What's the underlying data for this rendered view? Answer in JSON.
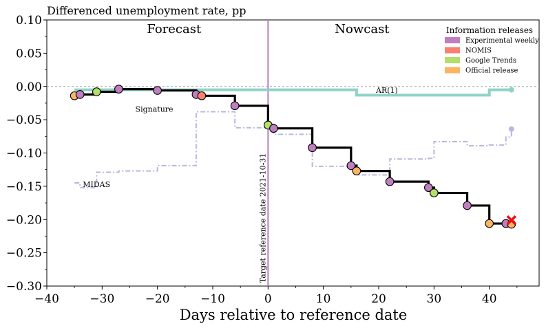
{
  "chart_data": {
    "type": "line",
    "title": "Differenced unemployment rate, pp",
    "xlabel": "Days relative to reference date",
    "ylabel": "",
    "xlim": [
      -40,
      49
    ],
    "ylim": [
      -0.3,
      0.1
    ],
    "xticks": [
      -40,
      -30,
      -20,
      -10,
      0,
      10,
      20,
      30,
      40
    ],
    "xtick_labels": [
      "−40",
      "−30",
      "−20",
      "−10",
      "0",
      "10",
      "20",
      "30",
      "40"
    ],
    "yticks": [
      -0.3,
      -0.25,
      -0.2,
      -0.15,
      -0.1,
      -0.05,
      0.0,
      0.05,
      0.1
    ],
    "ytick_labels": [
      "−0.30",
      "−0.25",
      "−0.20",
      "−0.15",
      "−0.10",
      "−0.05",
      "0.00",
      "0.05",
      "0.10"
    ],
    "zero_line": 0.0,
    "reference_line": {
      "x": 0,
      "label": "Target reference date 2021-10-31",
      "color": "#b87cc0"
    },
    "regions": [
      {
        "label": "Forecast",
        "x": -17
      },
      {
        "label": "Nowcast",
        "x": 17
      }
    ],
    "series": [
      {
        "name": "Signature",
        "style": "step",
        "color": "#000000",
        "points": [
          {
            "x": -35,
            "y": -0.014
          },
          {
            "x": -34,
            "y": -0.012
          },
          {
            "x": -31,
            "y": -0.008
          },
          {
            "x": -27,
            "y": -0.004
          },
          {
            "x": -20,
            "y": -0.006
          },
          {
            "x": -13,
            "y": -0.012
          },
          {
            "x": -12,
            "y": -0.014
          },
          {
            "x": -6,
            "y": -0.029
          },
          {
            "x": 0,
            "y": -0.058
          },
          {
            "x": 1,
            "y": -0.063
          },
          {
            "x": 8,
            "y": -0.092
          },
          {
            "x": 15,
            "y": -0.119
          },
          {
            "x": 16,
            "y": -0.127
          },
          {
            "x": 22,
            "y": -0.143
          },
          {
            "x": 29,
            "y": -0.152
          },
          {
            "x": 30,
            "y": -0.16
          },
          {
            "x": 36,
            "y": -0.179
          },
          {
            "x": 40,
            "y": -0.206
          },
          {
            "x": 43,
            "y": -0.206
          },
          {
            "x": 44,
            "y": -0.207
          }
        ]
      },
      {
        "name": "AR(1)",
        "style": "step",
        "color": "#8dd3c7",
        "points": [
          {
            "x": -35,
            "y": -0.005
          },
          {
            "x": 16,
            "y": -0.013
          },
          {
            "x": 40,
            "y": -0.005
          },
          {
            "x": 44,
            "y": -0.005
          }
        ]
      },
      {
        "name": "MIDAS",
        "style": "step-dashdot",
        "color": "#bcb6dd",
        "points": [
          {
            "x": -35,
            "y": -0.145
          },
          {
            "x": -34,
            "y": -0.152
          },
          {
            "x": -31,
            "y": -0.15
          },
          {
            "x": -31,
            "y": -0.129
          },
          {
            "x": -27,
            "y": -0.127
          },
          {
            "x": -20,
            "y": -0.119
          },
          {
            "x": -13,
            "y": -0.038
          },
          {
            "x": -6,
            "y": -0.062
          },
          {
            "x": 0,
            "y": -0.06
          },
          {
            "x": 1,
            "y": -0.072
          },
          {
            "x": 8,
            "y": -0.12
          },
          {
            "x": 15,
            "y": -0.125
          },
          {
            "x": 16,
            "y": -0.133
          },
          {
            "x": 22,
            "y": -0.109
          },
          {
            "x": 29,
            "y": -0.108
          },
          {
            "x": 30,
            "y": -0.083
          },
          {
            "x": 36,
            "y": -0.089
          },
          {
            "x": 40,
            "y": -0.088
          },
          {
            "x": 43,
            "y": -0.076
          },
          {
            "x": 44,
            "y": -0.064
          }
        ]
      }
    ],
    "releases": [
      {
        "x": -35,
        "y": -0.014,
        "type": "Official release"
      },
      {
        "x": -34,
        "y": -0.012,
        "type": "Experimental weekly"
      },
      {
        "x": -31,
        "y": -0.008,
        "type": "Google Trends"
      },
      {
        "x": -27,
        "y": -0.004,
        "type": "Experimental weekly"
      },
      {
        "x": -20,
        "y": -0.006,
        "type": "Experimental weekly"
      },
      {
        "x": -13,
        "y": -0.012,
        "type": "Experimental weekly"
      },
      {
        "x": -12,
        "y": -0.014,
        "type": "NOMIS"
      },
      {
        "x": -6,
        "y": -0.029,
        "type": "Experimental weekly"
      },
      {
        "x": 0,
        "y": -0.058,
        "type": "Google Trends"
      },
      {
        "x": 1,
        "y": -0.063,
        "type": "Experimental weekly"
      },
      {
        "x": 8,
        "y": -0.092,
        "type": "Experimental weekly"
      },
      {
        "x": 15,
        "y": -0.119,
        "type": "Experimental weekly"
      },
      {
        "x": 16,
        "y": -0.127,
        "type": "Official release"
      },
      {
        "x": 22,
        "y": -0.143,
        "type": "Experimental weekly"
      },
      {
        "x": 29,
        "y": -0.152,
        "type": "Experimental weekly"
      },
      {
        "x": 30,
        "y": -0.16,
        "type": "Google Trends"
      },
      {
        "x": 36,
        "y": -0.179,
        "type": "Experimental weekly"
      },
      {
        "x": 40,
        "y": -0.206,
        "type": "Official release"
      },
      {
        "x": 43,
        "y": -0.206,
        "type": "Experimental weekly"
      },
      {
        "x": 44,
        "y": -0.207,
        "type": "Official release"
      }
    ],
    "final_markers": [
      {
        "series": "AR(1)",
        "x": 44,
        "y": -0.005
      },
      {
        "series": "MIDAS",
        "x": 44,
        "y": -0.064
      }
    ],
    "actual": {
      "x": 44,
      "y": -0.201,
      "marker": "x",
      "color": "#ee1111"
    },
    "annotations": [
      {
        "text": "Signature",
        "x": -24,
        "y": -0.034
      },
      {
        "text": "AR(1)",
        "x": 19.5,
        "y": -0.0055
      },
      {
        "text": "MIDAS",
        "x": -33.5,
        "y": -0.147
      }
    ],
    "legend": {
      "title": "Information releases",
      "position": "top-right",
      "items": [
        {
          "label": "Experimental weekly",
          "color": "#bf7fbf"
        },
        {
          "label": "NOMIS",
          "color": "#fb8072"
        },
        {
          "label": "Google Trends",
          "color": "#b3de69"
        },
        {
          "label": "Official release",
          "color": "#fdb462"
        }
      ]
    }
  }
}
